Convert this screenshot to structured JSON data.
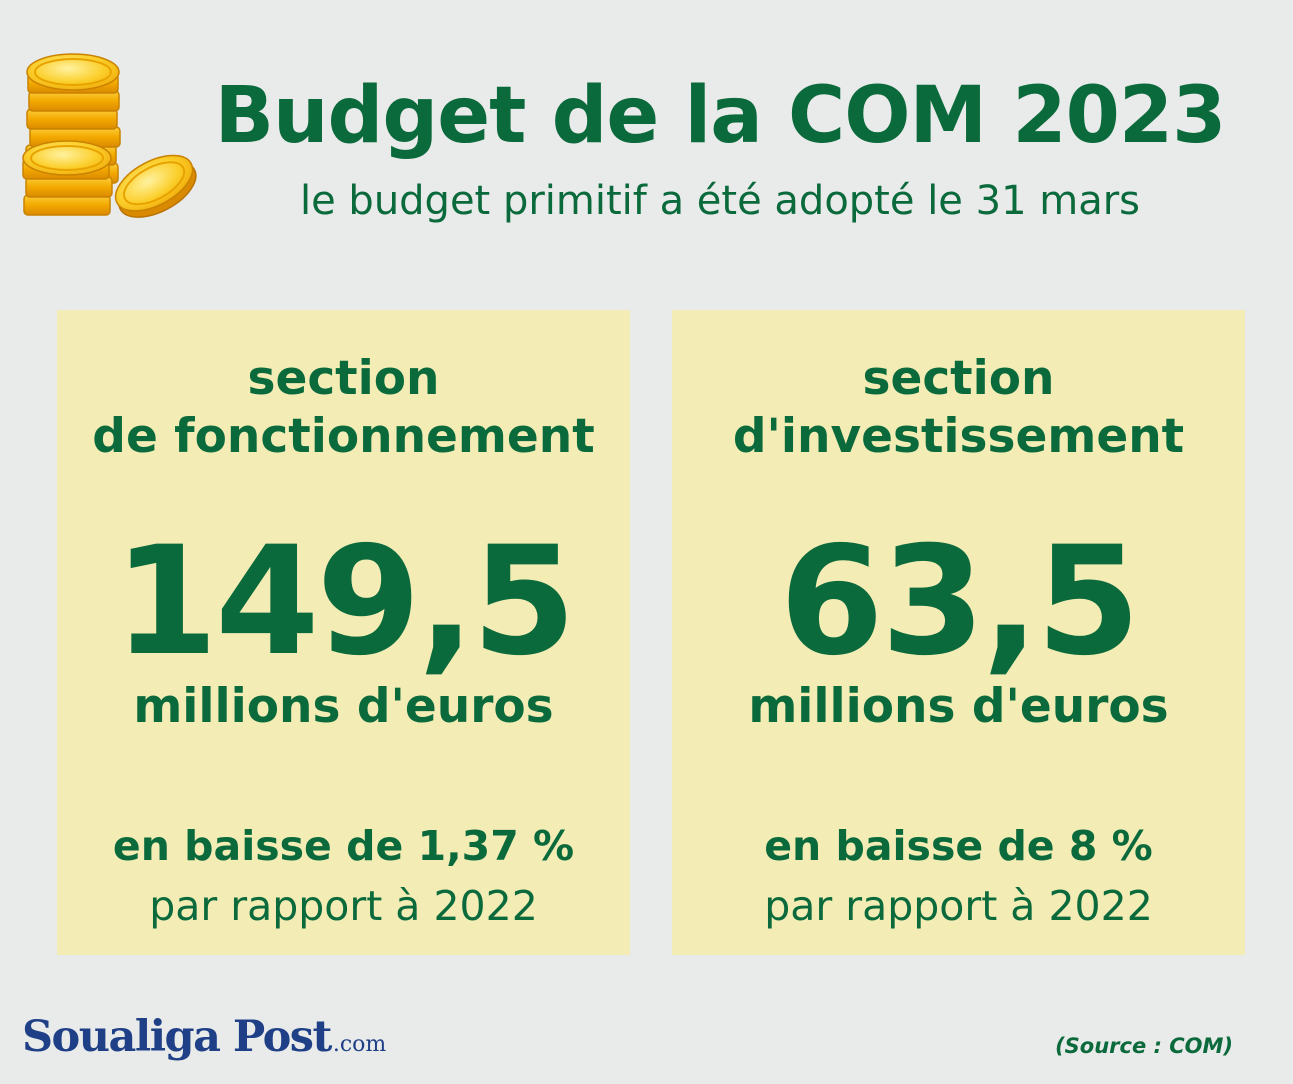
{
  "header": {
    "title": "Budget de la COM 2023",
    "subtitle": "le budget primitif a été adopté le 31 mars"
  },
  "cards": [
    {
      "title_line1": "section",
      "title_line2": "de fonctionnement",
      "value": "149,5",
      "unit": "millions d'euros",
      "change": "en baisse de 1,37 %",
      "compare": "par rapport à 2022"
    },
    {
      "title_line1": "section",
      "title_line2": "d'investissement",
      "value": "63,5",
      "unit": "millions d'euros",
      "change": "en baisse de 8 %",
      "compare": "par rapport à 2022"
    }
  ],
  "footer": {
    "logo_main": "Soualiga Post",
    "logo_suffix": ".com",
    "source": "(Source : COM)"
  },
  "icons": {
    "coins": "coin-stack-icon"
  },
  "colors": {
    "background": "#e9eaea",
    "card": "#f3ecb5",
    "text_green": "#0b6a3c",
    "logo_blue": "#1f3f86",
    "coin_gold": "#f7b500"
  }
}
